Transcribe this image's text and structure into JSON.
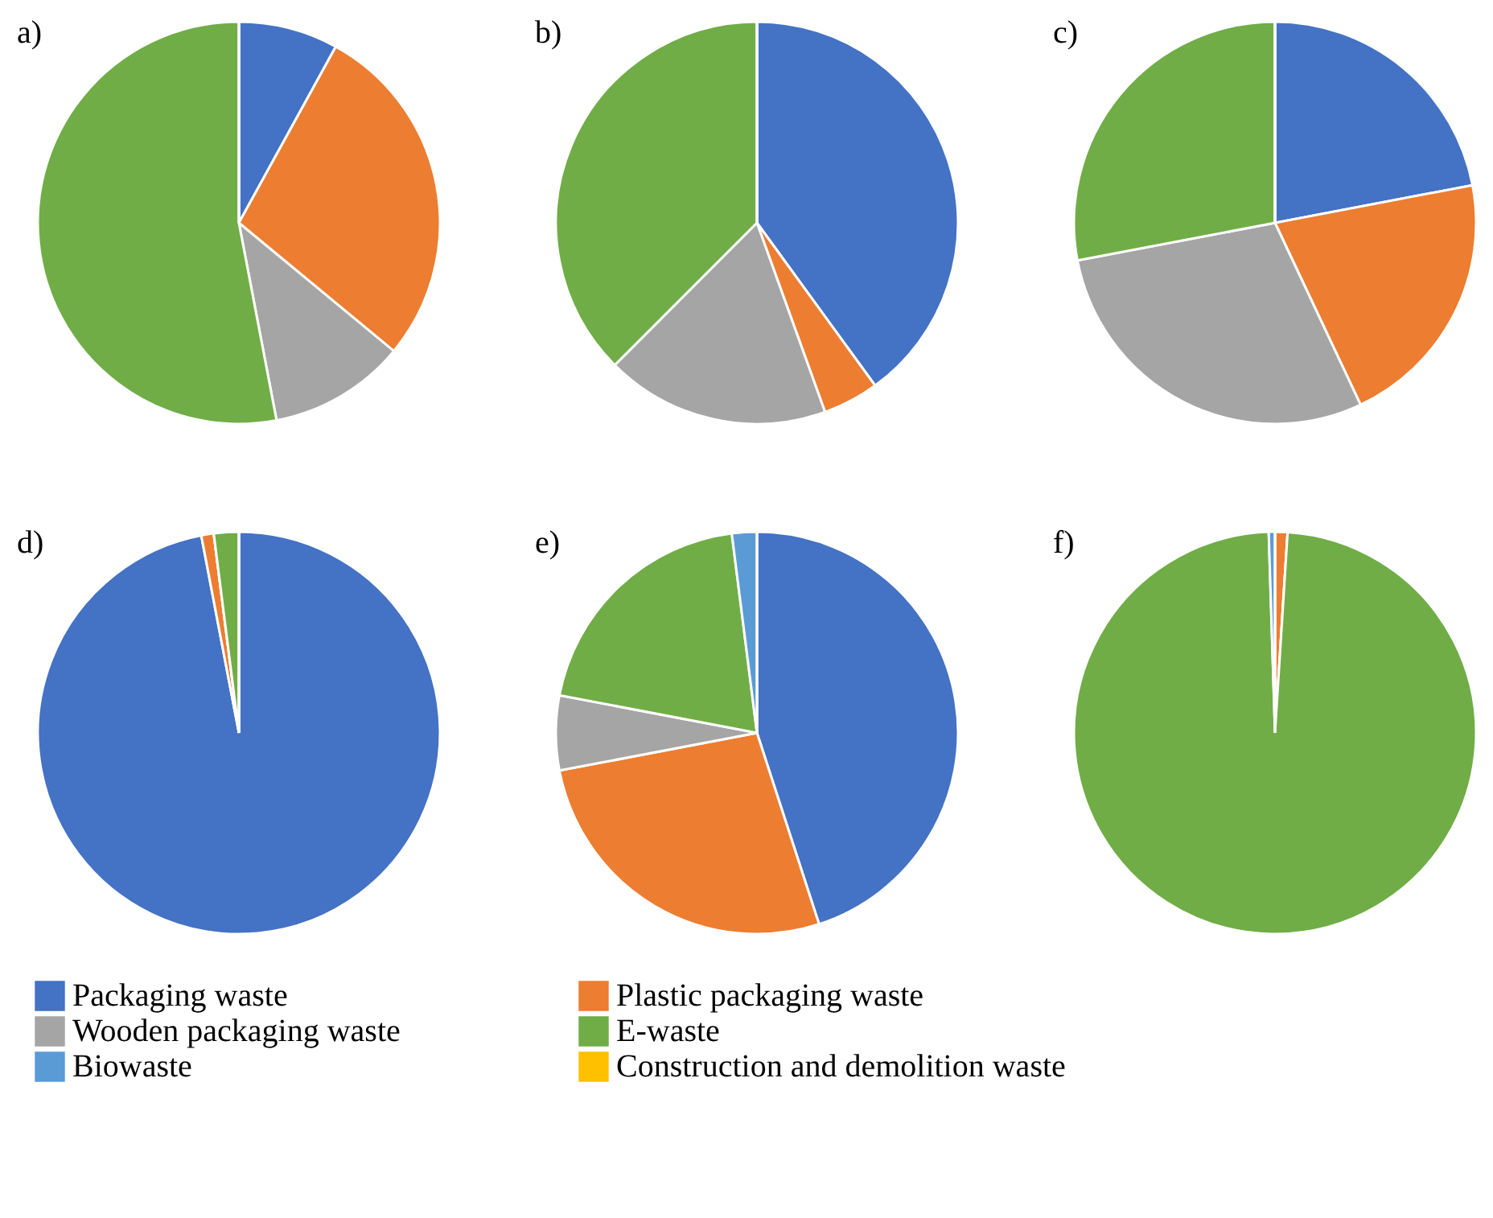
{
  "chart_data": [
    {
      "type": "pie",
      "title": "a)",
      "legend": "bottom",
      "categories": [
        "Packaging waste",
        "Plastic packaging waste",
        "Wooden packaging waste",
        "E-waste",
        "Biowaste",
        "Construction and demolition waste"
      ],
      "colors": [
        "#4472c4",
        "#ed7d31",
        "#a5a5a5",
        "#70ad47",
        "#5b9bd5",
        "#ffc000"
      ],
      "values": [
        8,
        28,
        11,
        53,
        0,
        0
      ]
    },
    {
      "type": "pie",
      "title": "b)",
      "categories": [
        null,
        null,
        null,
        null,
        null,
        null
      ],
      "colors": [
        "#4472c4",
        "#ed7d31",
        "#a5a5a5",
        "#70ad47",
        "#5b9bd5",
        "#ffc000"
      ],
      "values": [
        40,
        4.5,
        18,
        37.5,
        0,
        0
      ]
    },
    {
      "type": "pie",
      "title": "c)",
      "categories": [
        null,
        null,
        null,
        null,
        null,
        null
      ],
      "colors": [
        "#4472c4",
        "#ed7d31",
        "#a5a5a5",
        "#70ad47",
        "#5b9bd5",
        "#ffc000"
      ],
      "values": [
        22,
        21,
        29,
        28,
        0,
        0
      ]
    },
    {
      "type": "pie",
      "title": "d)",
      "categories": [
        null,
        null,
        null,
        null,
        null,
        null
      ],
      "colors": [
        "#4472c4",
        "#ed7d31",
        "#a5a5a5",
        "#70ad47",
        "#5b9bd5",
        "#ffc000"
      ],
      "values": [
        97,
        1,
        0,
        2,
        0,
        0
      ]
    },
    {
      "type": "pie",
      "title": "e)",
      "categories": [
        null,
        null,
        null,
        null,
        null,
        null
      ],
      "colors": [
        "#4472c4",
        "#ed7d31",
        "#a5a5a5",
        "#70ad47",
        "#5b9bd5",
        "#ffc000"
      ],
      "values": [
        45,
        27,
        6,
        20,
        2,
        0
      ]
    },
    {
      "type": "pie",
      "title": "f)",
      "categories": [
        null,
        null,
        null,
        null,
        null,
        null
      ],
      "colors": [
        "#4472c4",
        "#ed7d31",
        "#a5a5a5",
        "#70ad47",
        "#5b9bd5",
        "#ffc000"
      ],
      "values": [
        0,
        1,
        0,
        98.5,
        0.5,
        0
      ]
    }
  ]
}
